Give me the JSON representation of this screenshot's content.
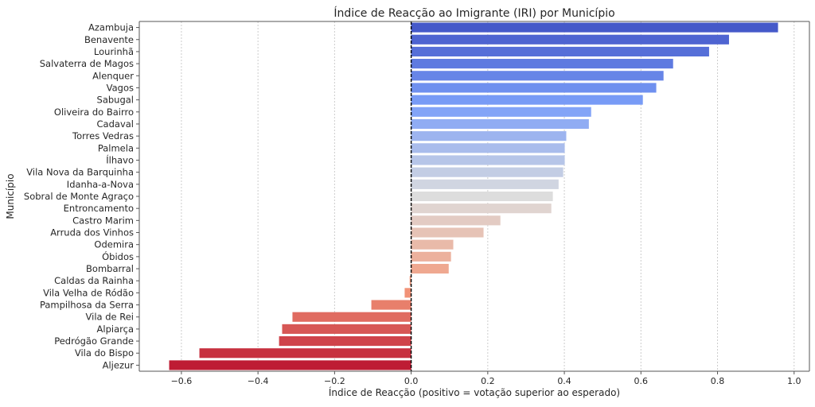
{
  "chart_data": {
    "type": "bar",
    "orientation": "horizontal",
    "title": "Índice de Reacção ao Imigrante (IRI) por Município",
    "xlabel": "Índice de Reacção (positivo = votação superior ao esperado)",
    "ylabel": "Município",
    "xlim": [
      -0.71,
      1.04
    ],
    "xticks": [
      -0.6,
      -0.4,
      -0.2,
      0.0,
      0.2,
      0.4,
      0.6,
      0.8,
      1.0
    ],
    "xtick_labels": [
      "−0.6",
      "−0.4",
      "−0.2",
      "0.0",
      "0.2",
      "0.4",
      "0.6",
      "0.8",
      "1.0"
    ],
    "grid": "x, dotted",
    "reference_line": {
      "x": 0,
      "style": "dashed",
      "color": "#000000"
    },
    "palette": "coolwarm",
    "palette_stops": [
      "#3b4cc0",
      "#7b9ff9",
      "#dddddd",
      "#f49a7b",
      "#b40426"
    ],
    "categories": [
      "Azambuja",
      "Benavente",
      "Lourinhã",
      "Salvaterra de Magos",
      "Alenquer",
      "Vagos",
      "Sabugal",
      "Oliveira do Bairro",
      "Cadaval",
      "Torres Vedras",
      "Palmela",
      "Ílhavo",
      "Vila Nova da Barquinha",
      "Idanha-a-Nova",
      "Sobral de Monte Agraço",
      "Entroncamento",
      "Castro Marim",
      "Arruda dos Vinhos",
      "Odemira",
      "Óbidos",
      "Bombarral",
      "Caldas da Rainha",
      "Vila Velha de Ródão",
      "Pampilhosa da Serra",
      "Vila de Rei",
      "Alpiarça",
      "Pedrógão Grande",
      "Vila do Bispo",
      "Aljezur"
    ],
    "values": [
      0.958,
      0.83,
      0.778,
      0.684,
      0.659,
      0.64,
      0.605,
      0.47,
      0.464,
      0.405,
      0.401,
      0.401,
      0.397,
      0.385,
      0.37,
      0.366,
      0.233,
      0.189,
      0.11,
      0.104,
      0.098,
      -0.004,
      -0.017,
      -0.104,
      -0.31,
      -0.337,
      -0.345,
      -0.553,
      -0.632
    ]
  }
}
